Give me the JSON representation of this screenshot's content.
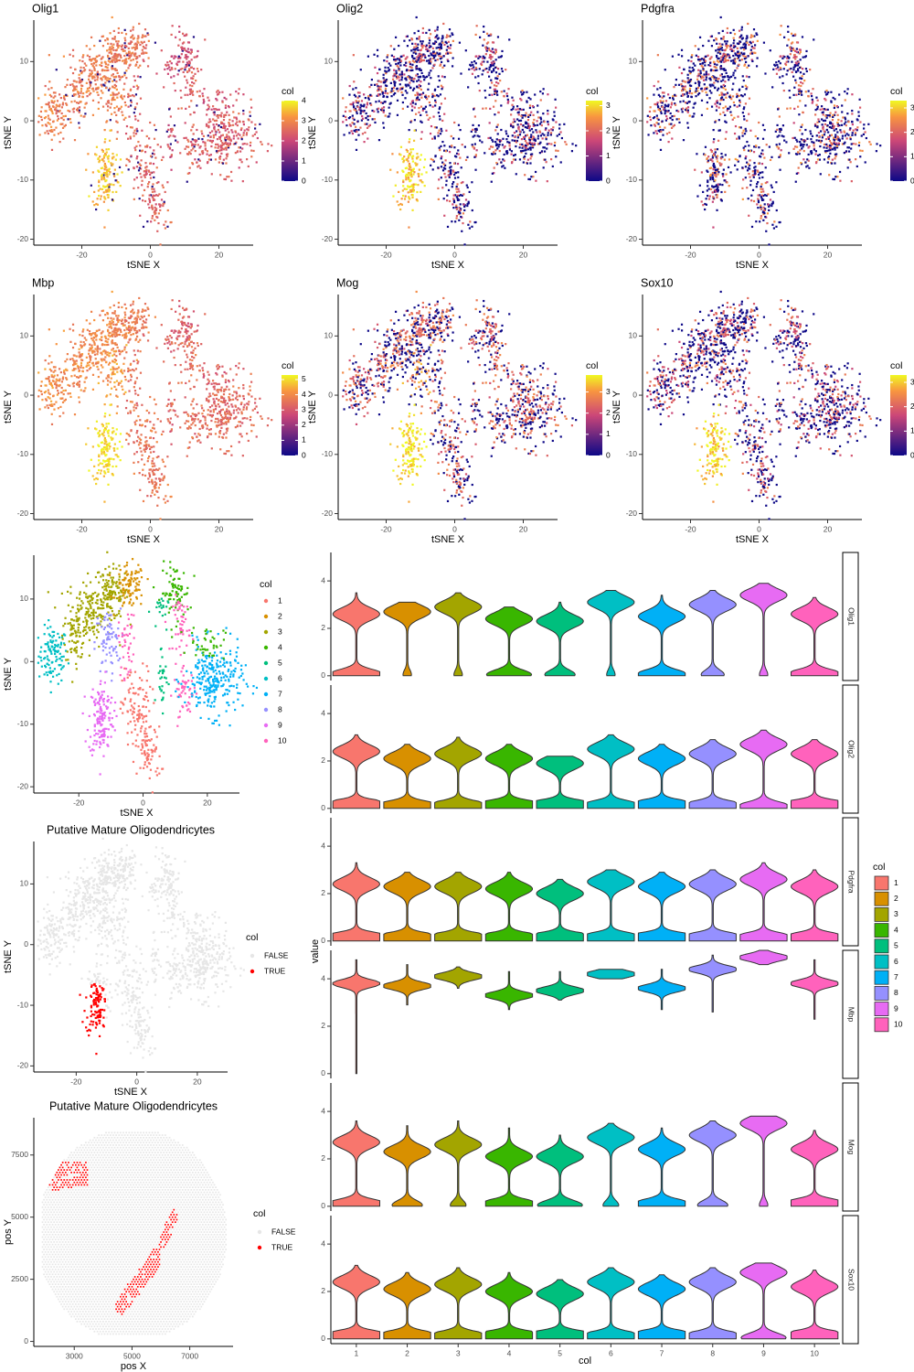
{
  "colors": {
    "magma_low": "#0d0887",
    "magma_mid": "#cc4778",
    "magma_high": "#f0f921",
    "cluster": [
      "#f8766d",
      "#d89000",
      "#a3a500",
      "#39b600",
      "#00bf7d",
      "#00bfc4",
      "#00b0f6",
      "#9590ff",
      "#e76bf3",
      "#ff62bc"
    ],
    "false_point": "#e6e6e6",
    "true_point": "#ff0000"
  },
  "chart_data": [
    {
      "type": "scatter",
      "title": "Olig1",
      "xlabel": "tSNE X",
      "ylabel": "tSNE Y",
      "xlim": [
        -34,
        30
      ],
      "ylim": [
        -21,
        17
      ],
      "xticks": [
        "-20",
        "0",
        "20"
      ],
      "yticks": [
        "-20",
        "-10",
        "0",
        "10"
      ],
      "legend_title": "col",
      "legend_ticks": [
        "0",
        "1",
        "2",
        "3",
        "4"
      ],
      "value_range": [
        0,
        4
      ]
    },
    {
      "type": "scatter",
      "title": "Olig2",
      "xlabel": "tSNE X",
      "ylabel": "tSNE Y",
      "xlim": [
        -34,
        30
      ],
      "ylim": [
        -21,
        17
      ],
      "xticks": [
        "-20",
        "0",
        "20"
      ],
      "yticks": [
        "-20",
        "-10",
        "0",
        "10"
      ],
      "legend_title": "col",
      "legend_ticks": [
        "0",
        "1",
        "2",
        "3"
      ],
      "value_range": [
        0,
        3.2
      ]
    },
    {
      "type": "scatter",
      "title": "Pdgfra",
      "xlabel": "tSNE X",
      "ylabel": "tSNE Y",
      "xlim": [
        -34,
        30
      ],
      "ylim": [
        -21,
        17
      ],
      "xticks": [
        "-20",
        "0",
        "20"
      ],
      "yticks": [
        "-20",
        "-10",
        "0",
        "10"
      ],
      "legend_title": "col",
      "legend_ticks": [
        "0",
        "1",
        "2",
        "3"
      ],
      "value_range": [
        0,
        3.3
      ]
    },
    {
      "type": "scatter",
      "title": "Mbp",
      "xlabel": "tSNE X",
      "ylabel": "tSNE Y",
      "xlim": [
        -34,
        30
      ],
      "ylim": [
        -21,
        17
      ],
      "xticks": [
        "-20",
        "0",
        "20"
      ],
      "yticks": [
        "-20",
        "-10",
        "0",
        "10"
      ],
      "legend_title": "col",
      "legend_ticks": [
        "0",
        "1",
        "2",
        "3",
        "4",
        "5"
      ],
      "value_range": [
        0,
        5.3
      ]
    },
    {
      "type": "scatter",
      "title": "Mog",
      "xlabel": "tSNE X",
      "ylabel": "tSNE Y",
      "xlim": [
        -34,
        30
      ],
      "ylim": [
        -21,
        17
      ],
      "xticks": [
        "-20",
        "0",
        "20"
      ],
      "yticks": [
        "-20",
        "-10",
        "0",
        "10"
      ],
      "legend_title": "col",
      "legend_ticks": [
        "0",
        "1",
        "2",
        "3"
      ],
      "value_range": [
        0,
        3.8
      ]
    },
    {
      "type": "scatter",
      "title": "Sox10",
      "xlabel": "tSNE X",
      "ylabel": "tSNE Y",
      "xlim": [
        -34,
        30
      ],
      "ylim": [
        -21,
        17
      ],
      "xticks": [
        "-20",
        "0",
        "20"
      ],
      "yticks": [
        "-20",
        "-10",
        "0",
        "10"
      ],
      "legend_title": "col",
      "legend_ticks": [
        "0",
        "1",
        "2",
        "3"
      ],
      "value_range": [
        0,
        3.3
      ]
    },
    {
      "type": "scatter",
      "title": "",
      "xlabel": "tSNE X",
      "ylabel": "tSNE Y",
      "xlim": [
        -34,
        30
      ],
      "ylim": [
        -21,
        17
      ],
      "xticks": [
        "-20",
        "0",
        "20"
      ],
      "yticks": [
        "-20",
        "-10",
        "0",
        "10"
      ],
      "legend_title": "col",
      "legend_entries": [
        "1",
        "2",
        "3",
        "4",
        "5",
        "6",
        "7",
        "8",
        "9",
        "10"
      ]
    },
    {
      "type": "scatter",
      "title": "Putative Mature Oligodendricytes",
      "xlabel": "tSNE X",
      "ylabel": "tSNE Y",
      "xlim": [
        -34,
        30
      ],
      "ylim": [
        -21,
        17
      ],
      "xticks": [
        "-20",
        "0",
        "20"
      ],
      "yticks": [
        "-20",
        "-10",
        "0",
        "10"
      ],
      "legend_title": "col",
      "legend_entries": [
        "FALSE",
        "TRUE"
      ]
    },
    {
      "type": "scatter",
      "title": "Putative Mature Oligodendricytes",
      "xlabel": "pos X",
      "ylabel": "pos Y",
      "xlim": [
        1600,
        8500
      ],
      "ylim": [
        -200,
        9000
      ],
      "xticks": [
        "3000",
        "5000",
        "7000"
      ],
      "yticks": [
        "0",
        "2500",
        "5000",
        "7500"
      ],
      "legend_title": "col",
      "legend_entries": [
        "FALSE",
        "TRUE"
      ]
    },
    {
      "type": "violin",
      "xlabel": "col",
      "ylabel": "value",
      "categories": [
        "1",
        "2",
        "3",
        "4",
        "5",
        "6",
        "7",
        "8",
        "9",
        "10"
      ],
      "ylim": [
        -0.2,
        5.2
      ],
      "yticks": [
        "0",
        "2",
        "4"
      ],
      "legend_title": "col",
      "legend_entries": [
        "1",
        "2",
        "3",
        "4",
        "5",
        "6",
        "7",
        "8",
        "9",
        "10"
      ],
      "facets": [
        {
          "name": "Olig1",
          "max": [
            3.5,
            3.1,
            3.5,
            2.9,
            3.1,
            3.6,
            3.4,
            3.6,
            3.9,
            3.3
          ],
          "mode": [
            2.6,
            2.7,
            2.9,
            2.4,
            2.3,
            3.1,
            2.5,
            3.0,
            3.4,
            2.6
          ],
          "zero": [
            0.4,
            0.05,
            0.05,
            0.3,
            0.2,
            0.05,
            0.35,
            0.15,
            0.05,
            0.4
          ]
        },
        {
          "name": "Olig2",
          "max": [
            3.1,
            2.7,
            3.0,
            2.7,
            2.2,
            3.1,
            2.7,
            2.9,
            3.3,
            2.9
          ],
          "mode": [
            2.4,
            2.1,
            2.3,
            2.1,
            1.9,
            2.5,
            2.1,
            2.3,
            2.7,
            2.3
          ],
          "zero": [
            0.9,
            0.6,
            0.6,
            0.8,
            0.9,
            0.6,
            0.9,
            0.6,
            0.4,
            0.9
          ]
        },
        {
          "name": "Pdgfra",
          "max": [
            3.3,
            2.9,
            2.9,
            2.9,
            2.6,
            3.0,
            2.9,
            3.0,
            3.3,
            3.0
          ],
          "mode": [
            2.4,
            2.3,
            2.3,
            2.2,
            2.0,
            2.5,
            2.3,
            2.4,
            2.6,
            2.3
          ],
          "zero": [
            0.9,
            0.8,
            0.8,
            0.8,
            0.9,
            0.8,
            0.9,
            0.8,
            0.7,
            0.8
          ]
        },
        {
          "name": "Mbp",
          "max": [
            4.8,
            4.6,
            4.5,
            4.3,
            4.3,
            4.4,
            4.4,
            5.0,
            5.2,
            4.8
          ],
          "mode": [
            3.8,
            3.7,
            4.1,
            3.3,
            3.5,
            4.2,
            3.6,
            4.4,
            4.9,
            3.8
          ],
          "low": [
            0.0,
            2.9,
            3.6,
            2.7,
            3.1,
            4.0,
            2.7,
            2.6,
            4.6,
            2.3
          ]
        },
        {
          "name": "Mog",
          "max": [
            3.6,
            3.4,
            3.6,
            3.3,
            3.0,
            3.5,
            3.3,
            3.6,
            3.8,
            3.2
          ],
          "mode": [
            2.7,
            2.3,
            2.6,
            2.1,
            2.1,
            2.9,
            2.4,
            3.0,
            3.5,
            2.4
          ],
          "zero": [
            0.5,
            0.2,
            0.1,
            0.5,
            0.3,
            0.1,
            0.5,
            0.2,
            0.05,
            0.6
          ]
        },
        {
          "name": "Sox10",
          "max": [
            3.1,
            2.8,
            3.0,
            2.8,
            2.5,
            3.0,
            2.7,
            3.0,
            3.2,
            2.9
          ],
          "mode": [
            2.4,
            2.1,
            2.3,
            2.0,
            1.9,
            2.4,
            2.1,
            2.4,
            2.8,
            2.2
          ],
          "zero": [
            0.8,
            0.7,
            0.6,
            0.8,
            0.9,
            0.6,
            0.9,
            0.6,
            0.3,
            0.8
          ]
        }
      ]
    }
  ]
}
